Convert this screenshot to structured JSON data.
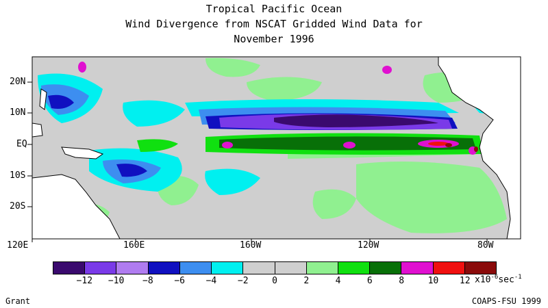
{
  "title": {
    "line1": "Tropical Pacific Ocean",
    "line2": "Wind Divergence from NSCAT Gridded Wind Data for",
    "line3": "November 1996"
  },
  "latitude_labels": [
    "20N",
    "10N",
    "EQ",
    "10S",
    "20S"
  ],
  "longitude_labels": [
    "120E",
    "160E",
    "160W",
    "120W",
    "80W"
  ],
  "colorbar": {
    "colors": [
      "#3a0a6e",
      "#7a3ae8",
      "#b07cf0",
      "#1010c0",
      "#3d8ef0",
      "#00f0f0",
      "#cfcfcf",
      "#cfcfcf",
      "#90f090",
      "#10e010",
      "#087008",
      "#e010d0",
      "#f01010",
      "#8a0a0a"
    ],
    "tick_labels": [
      "-12",
      "-10",
      "-8",
      "-6",
      "-4",
      "-2",
      "0",
      "2",
      "4",
      "6",
      "8",
      "10",
      "12"
    ],
    "units_prefix": "x10",
    "units_exponent": "-6",
    "units_suffix": "sec",
    "units_suffix_exponent": "-1"
  },
  "colors": {
    "background": "#cfcfcf",
    "coastline": "#000000",
    "land": "#ffffff"
  },
  "credit_left": "Grant",
  "credit_right": "COAPS-FSU 1999"
}
